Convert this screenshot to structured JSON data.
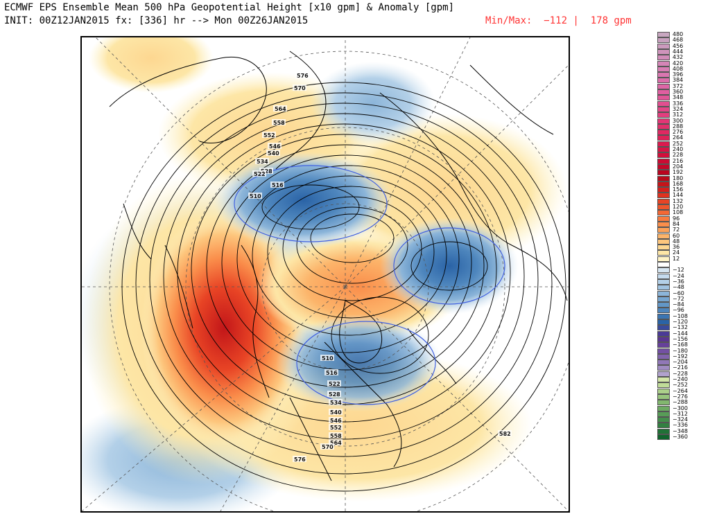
{
  "header": {
    "title_line1": "ECMWF EPS Ensemble Mean 500 hPa Geopotential Height [x10 gpm] & Anomaly [gpm]",
    "title_line2": "INIT: 00Z12JAN2015 fx: [336] hr --> Mon 00Z26JAN2015",
    "minmax_label": "Min/Max:  −112 |  178 gpm",
    "minmax_color": "#ff3333"
  },
  "map": {
    "contour_labels": [
      {
        "text": "576"
      },
      {
        "text": "570"
      },
      {
        "text": "564"
      },
      {
        "text": "558"
      },
      {
        "text": "552"
      },
      {
        "text": "546"
      },
      {
        "text": "540"
      },
      {
        "text": "534"
      },
      {
        "text": "528"
      },
      {
        "text": "522"
      },
      {
        "text": "516"
      },
      {
        "text": "510"
      },
      {
        "text": "510"
      },
      {
        "text": "516"
      },
      {
        "text": "522"
      },
      {
        "text": "528"
      },
      {
        "text": "534"
      },
      {
        "text": "540"
      },
      {
        "text": "546"
      },
      {
        "text": "552"
      },
      {
        "text": "558"
      },
      {
        "text": "564"
      },
      {
        "text": "570"
      },
      {
        "text": "576"
      },
      {
        "text": "582"
      }
    ]
  },
  "colorbar": {
    "items": [
      {
        "label": "480",
        "color": "#c8a7c0"
      },
      {
        "label": "468",
        "color": "#c9a1bf"
      },
      {
        "label": "456",
        "color": "#cc9abd"
      },
      {
        "label": "444",
        "color": "#cf93bb"
      },
      {
        "label": "432",
        "color": "#d28cb9"
      },
      {
        "label": "420",
        "color": "#d585b7"
      },
      {
        "label": "408",
        "color": "#d87eb4"
      },
      {
        "label": "396",
        "color": "#da76b0"
      },
      {
        "label": "384",
        "color": "#dc6eab"
      },
      {
        "label": "372",
        "color": "#de66a6"
      },
      {
        "label": "360",
        "color": "#e05ea0"
      },
      {
        "label": "348",
        "color": "#e15698"
      },
      {
        "label": "336",
        "color": "#e24e90"
      },
      {
        "label": "324",
        "color": "#e34687"
      },
      {
        "label": "312",
        "color": "#e33e7e"
      },
      {
        "label": "300",
        "color": "#e33675"
      },
      {
        "label": "288",
        "color": "#e22f6b"
      },
      {
        "label": "276",
        "color": "#e02862"
      },
      {
        "label": "264",
        "color": "#de2158"
      },
      {
        "label": "252",
        "color": "#db1a4e"
      },
      {
        "label": "240",
        "color": "#d71444"
      },
      {
        "label": "228",
        "color": "#d20f3b"
      },
      {
        "label": "216",
        "color": "#cc0a32"
      },
      {
        "label": "204",
        "color": "#c40628"
      },
      {
        "label": "192",
        "color": "#bb031f"
      },
      {
        "label": "180",
        "color": "#b80a1a"
      },
      {
        "label": "168",
        "color": "#c51419"
      },
      {
        "label": "156",
        "color": "#d41f1c"
      },
      {
        "label": "144",
        "color": "#e0311f"
      },
      {
        "label": "132",
        "color": "#e84425"
      },
      {
        "label": "120",
        "color": "#ef562c"
      },
      {
        "label": "108",
        "color": "#f46835"
      },
      {
        "label": "96",
        "color": "#f87b3f"
      },
      {
        "label": "84",
        "color": "#fa8e4b"
      },
      {
        "label": "72",
        "color": "#fba159"
      },
      {
        "label": "60",
        "color": "#fcb46a"
      },
      {
        "label": "48",
        "color": "#fdc67d"
      },
      {
        "label": "36",
        "color": "#fdd791"
      },
      {
        "label": "24",
        "color": "#fde6a6"
      },
      {
        "label": "12",
        "color": "#fef3c6"
      },
      {
        "label": "",
        "color": "#ffffff"
      },
      {
        "label": "−12",
        "color": "#d6e6f2"
      },
      {
        "label": "−24",
        "color": "#c5dbee"
      },
      {
        "label": "−36",
        "color": "#b3d0e8"
      },
      {
        "label": "−48",
        "color": "#a0c3e1"
      },
      {
        "label": "−60",
        "color": "#8cb5d9"
      },
      {
        "label": "−72",
        "color": "#77a6d0"
      },
      {
        "label": "−84",
        "color": "#6297c7"
      },
      {
        "label": "−96",
        "color": "#4e86bd"
      },
      {
        "label": "−108",
        "color": "#3b75b2"
      },
      {
        "label": "−120",
        "color": "#2a63a6"
      },
      {
        "label": "−132",
        "color": "#3a4a9c"
      },
      {
        "label": "−144",
        "color": "#4a3a96"
      },
      {
        "label": "−156",
        "color": "#5a3591"
      },
      {
        "label": "−168",
        "color": "#66409a"
      },
      {
        "label": "−180",
        "color": "#7350a3"
      },
      {
        "label": "−192",
        "color": "#8163ad"
      },
      {
        "label": "−204",
        "color": "#9077b7"
      },
      {
        "label": "−216",
        "color": "#a08cc2"
      },
      {
        "label": "−228",
        "color": "#b1a2cd"
      },
      {
        "label": "−240",
        "color": "#d3e6a8"
      },
      {
        "label": "−252",
        "color": "#c0dc98"
      },
      {
        "label": "−264",
        "color": "#acd08a"
      },
      {
        "label": "−276",
        "color": "#97c47c"
      },
      {
        "label": "−288",
        "color": "#82b76f"
      },
      {
        "label": "−300",
        "color": "#6daa63"
      },
      {
        "label": "−312",
        "color": "#589c57"
      },
      {
        "label": "−324",
        "color": "#448e4c"
      },
      {
        "label": "−336",
        "color": "#328041"
      },
      {
        "label": "−348",
        "color": "#207236"
      },
      {
        "label": "−360",
        "color": "#10642c"
      }
    ]
  }
}
